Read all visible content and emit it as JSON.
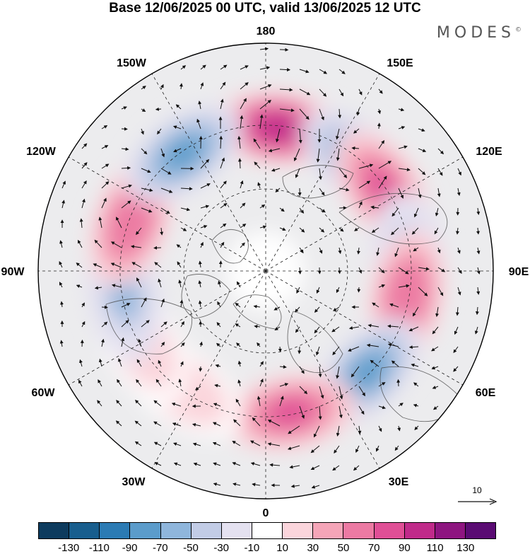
{
  "title": "Base 12/06/2025 00 UTC, valid 13/06/2025 12 UTC",
  "brand": "MODES",
  "brand_mark": "©",
  "longitude_labels": {
    "top": "180",
    "bottom": "0",
    "left": "90W",
    "right": "90E",
    "w150": "150W",
    "e150": "150E",
    "w120": "120W",
    "e120": "120E",
    "w60": "60W",
    "e60": "60E",
    "w30": "30W",
    "e30": "30E"
  },
  "reference_vector": {
    "label": "10"
  },
  "colorbar": {
    "colors": [
      "#0d3b5e",
      "#185e8e",
      "#2b7bb4",
      "#5b9ccb",
      "#8fb6dc",
      "#c2cce6",
      "#e4e1f0",
      "#ffffff",
      "#fbd5dc",
      "#f5a5b8",
      "#ec7aa3",
      "#e04f96",
      "#c02a8a",
      "#8e1580",
      "#5a0b73"
    ],
    "tick_labels": [
      "-130",
      "-110",
      "-90",
      "-70",
      "-50",
      "-30",
      "-10",
      "10",
      "30",
      "50",
      "70",
      "90",
      "110",
      "130"
    ]
  },
  "map_data": {
    "projection": "north polar stereographic",
    "field": "shaded anomaly with streamline arrows",
    "anomaly_centers": [
      {
        "lon": 175,
        "value": 110
      },
      {
        "lon": 140,
        "value": -90
      },
      {
        "lon": 125,
        "value": 90
      },
      {
        "lon": 95,
        "value": -50
      },
      {
        "lon": 80,
        "value": 70
      },
      {
        "lon": 45,
        "value": -70
      },
      {
        "lon": 10,
        "value": 90
      },
      {
        "lon": -35,
        "value": 30
      },
      {
        "lon": -60,
        "value": 30
      },
      {
        "lon": -80,
        "value": -50
      },
      {
        "lon": -110,
        "value": 70
      },
      {
        "lon": -145,
        "value": -70
      }
    ]
  }
}
